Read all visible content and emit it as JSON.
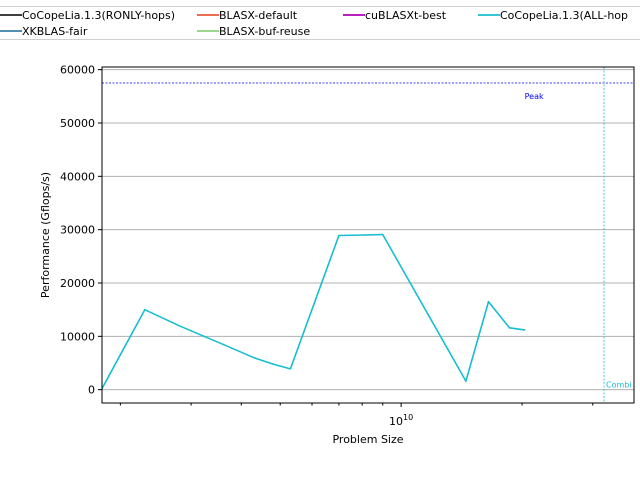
{
  "chart_data": {
    "type": "line",
    "xlabel": "Problem Size",
    "ylabel": "Performance (Gflops/s)",
    "xscale": "log",
    "xlim": [
      1800000000,
      38000000000
    ],
    "ylim": [
      -2500,
      60500
    ],
    "yticks": [
      0,
      10000,
      20000,
      30000,
      40000,
      50000,
      60000
    ],
    "xtick_major_label": {
      "base": "10",
      "exp": "10"
    },
    "grid": "y",
    "legend": {
      "placement": "top",
      "entries": [
        {
          "name": "CoCopeLia.1.3(RONLY-hops)",
          "color": "#222222"
        },
        {
          "name": "BLASX-default",
          "color": "#e8583a"
        },
        {
          "name": "cuBLASXt-best",
          "color": "#b000b5"
        },
        {
          "name": "CoCopeLia.1.3(ALL-hop",
          "color": "#17becf"
        },
        {
          "name": "XKBLAS-fair",
          "color": "#3a7fa8"
        },
        {
          "name": "BLASX-buf-reuse",
          "color": "#8fd17f"
        }
      ]
    },
    "series": [
      {
        "name": "CoCopeLia.1.3(ALL-hop",
        "color": "#17becf",
        "x": [
          1800000000,
          2300000000,
          2800000000,
          3600000000,
          4300000000,
          4800000000,
          5300000000,
          7000000000,
          8100000000,
          9000000000,
          14500000000,
          16500000000,
          18600000000,
          20300000000
        ],
        "y": [
          200,
          15000,
          12000,
          8500,
          6000,
          4800,
          3900,
          28900,
          29000,
          29100,
          1600,
          16500,
          11600,
          11200
        ]
      }
    ],
    "annotations": [
      {
        "label": "Peak",
        "type": "hline",
        "y": 57500,
        "color": "#0000ff"
      },
      {
        "label": "Combi",
        "type": "vline",
        "x": 32000000000,
        "color": "#17becf"
      }
    ]
  }
}
